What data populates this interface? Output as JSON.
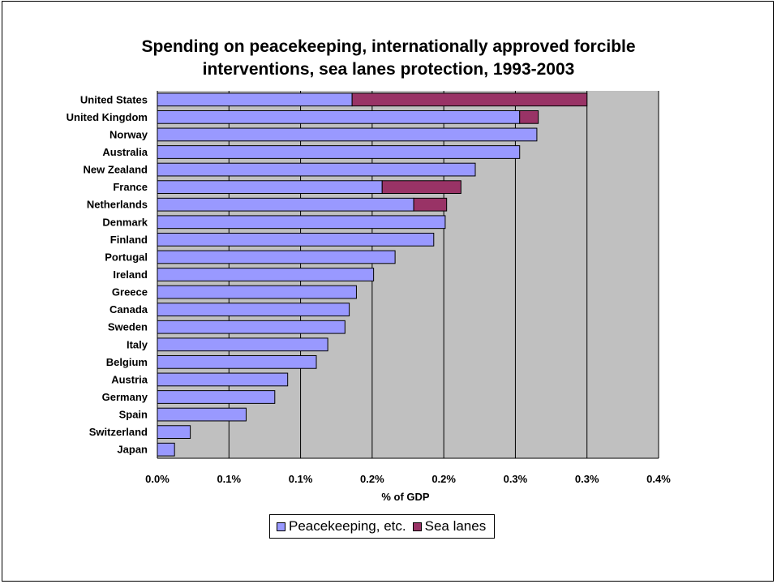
{
  "chart_data": {
    "type": "bar",
    "orientation": "horizontal",
    "stacked": true,
    "title": [
      "Spending on peacekeeping, internationally approved forcible",
      "interventions, sea lanes protection, 1993-2003"
    ],
    "xlabel": "% of GDP",
    "ylabel": "",
    "xlim": [
      0,
      0.0035
    ],
    "x_ticks": [
      0,
      0.0005,
      0.001,
      0.0015,
      0.002,
      0.0025,
      0.003,
      0.0035
    ],
    "x_tick_labels": [
      "0.0%",
      "0.1%",
      "0.1%",
      "0.2%",
      "0.2%",
      "0.3%",
      "0.3%",
      "0.4%"
    ],
    "grid": "vertical",
    "plot_background": "#c0c0c0",
    "categories": [
      "United States",
      "United Kingdom",
      "Norway",
      "Australia",
      "New Zealand",
      "France",
      "Netherlands",
      "Denmark",
      "Finland",
      "Portugal",
      "Ireland",
      "Greece",
      "Canada",
      "Sweden",
      "Italy",
      "Belgium",
      "Austria",
      "Germany",
      "Spain",
      "Switzerland",
      "Japan"
    ],
    "series": [
      {
        "name": "Peacekeeping, etc.",
        "color": "#9999ff",
        "values": [
          0.00136,
          0.00253,
          0.00265,
          0.00253,
          0.00222,
          0.00157,
          0.00179,
          0.00201,
          0.00193,
          0.00166,
          0.00151,
          0.00139,
          0.00134,
          0.00131,
          0.00119,
          0.00111,
          0.00091,
          0.00082,
          0.00062,
          0.00023,
          0.00012
        ]
      },
      {
        "name": "Sea lanes",
        "color": "#993366",
        "values": [
          0.00164,
          0.00013,
          0,
          0,
          0,
          0.00055,
          0.00023,
          0,
          0,
          0,
          0,
          0,
          0,
          0,
          0,
          0,
          0,
          0,
          0,
          0,
          0
        ]
      }
    ],
    "legend_position": "bottom"
  }
}
